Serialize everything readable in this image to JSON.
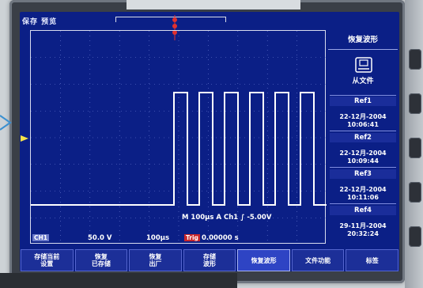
{
  "screen": {
    "status_label": "保存 预览",
    "plot_axes_note": ""
  },
  "readouts": {
    "timebase_line": "M 100μs",
    "trigger_channel_prefix": "A",
    "trigger_channel": "Ch1",
    "trigger_level": "∫ -5.00V",
    "ch1_badge": "CH1",
    "ch1_scale": "50.0 V",
    "time_scale": "100μs",
    "trigger_tag": "Trig",
    "trigger_offset": "0.00000 s"
  },
  "menu": {
    "title": "恢复波形",
    "from_file_label": "从文件",
    "from_file_icon": "file-folder-icon",
    "refs": [
      {
        "label": "Ref1",
        "date": "22-12月-2004",
        "time": "10:06:41"
      },
      {
        "label": "Ref2",
        "date": "22-12月-2004",
        "time": "10:09:44"
      },
      {
        "label": "Ref3",
        "date": "22-12月-2004",
        "time": "10:11:06"
      },
      {
        "label": "Ref4",
        "date": "29-11月-2004",
        "time": "20:32:24"
      }
    ]
  },
  "softkeys": [
    {
      "line1": "存储当前",
      "line2": "设置",
      "active": false
    },
    {
      "line1": "恢复",
      "line2": "已存储",
      "active": false
    },
    {
      "line1": "恢复",
      "line2": "出厂",
      "active": false
    },
    {
      "line1": "存储",
      "line2": "波形",
      "active": false
    },
    {
      "line1": "恢复波形",
      "line2": "",
      "active": true
    },
    {
      "line1": "文件功能",
      "line2": "",
      "active": false
    },
    {
      "line1": "标签",
      "line2": "",
      "active": false
    }
  ],
  "colors": {
    "screen_bg": "#0b1f86",
    "trace": "#ffffff",
    "trigger_marker": "#e0302f",
    "trigger_level_text": "#f7e34a"
  },
  "waveform": {
    "description_type": "square-burst",
    "baseline_level": 0,
    "high_level": 1,
    "pulses": 6
  }
}
